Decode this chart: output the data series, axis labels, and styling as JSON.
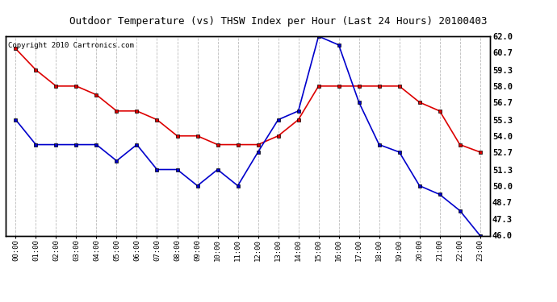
{
  "title": "Outdoor Temperature (vs) THSW Index per Hour (Last 24 Hours) 20100403",
  "copyright": "Copyright 2010 Cartronics.com",
  "hours": [
    "00:00",
    "01:00",
    "02:00",
    "03:00",
    "04:00",
    "05:00",
    "06:00",
    "07:00",
    "08:00",
    "09:00",
    "10:00",
    "11:00",
    "12:00",
    "13:00",
    "14:00",
    "15:00",
    "16:00",
    "17:00",
    "18:00",
    "19:00",
    "20:00",
    "21:00",
    "22:00",
    "23:00"
  ],
  "red_data": [
    61.0,
    59.3,
    58.0,
    58.0,
    57.3,
    56.0,
    56.0,
    55.3,
    54.0,
    54.0,
    53.3,
    53.3,
    53.3,
    54.0,
    55.3,
    58.0,
    58.0,
    58.0,
    58.0,
    58.0,
    56.7,
    56.0,
    53.3,
    52.7
  ],
  "blue_data": [
    55.3,
    53.3,
    53.3,
    53.3,
    53.3,
    52.0,
    53.3,
    51.3,
    51.3,
    50.0,
    51.3,
    50.0,
    52.7,
    55.3,
    56.0,
    62.0,
    61.3,
    56.7,
    53.3,
    52.7,
    50.0,
    49.3,
    48.0,
    46.0
  ],
  "y_ticks": [
    46.0,
    47.3,
    48.7,
    50.0,
    51.3,
    52.7,
    54.0,
    55.3,
    56.7,
    58.0,
    59.3,
    60.7,
    62.0
  ],
  "y_min": 46.0,
  "y_max": 62.0,
  "red_color": "#dd0000",
  "blue_color": "#0000cc",
  "grid_color": "#bbbbbb",
  "bg_color": "#ffffff",
  "plot_bg_color": "#ffffff",
  "title_fontsize": 9,
  "copyright_fontsize": 6.5
}
